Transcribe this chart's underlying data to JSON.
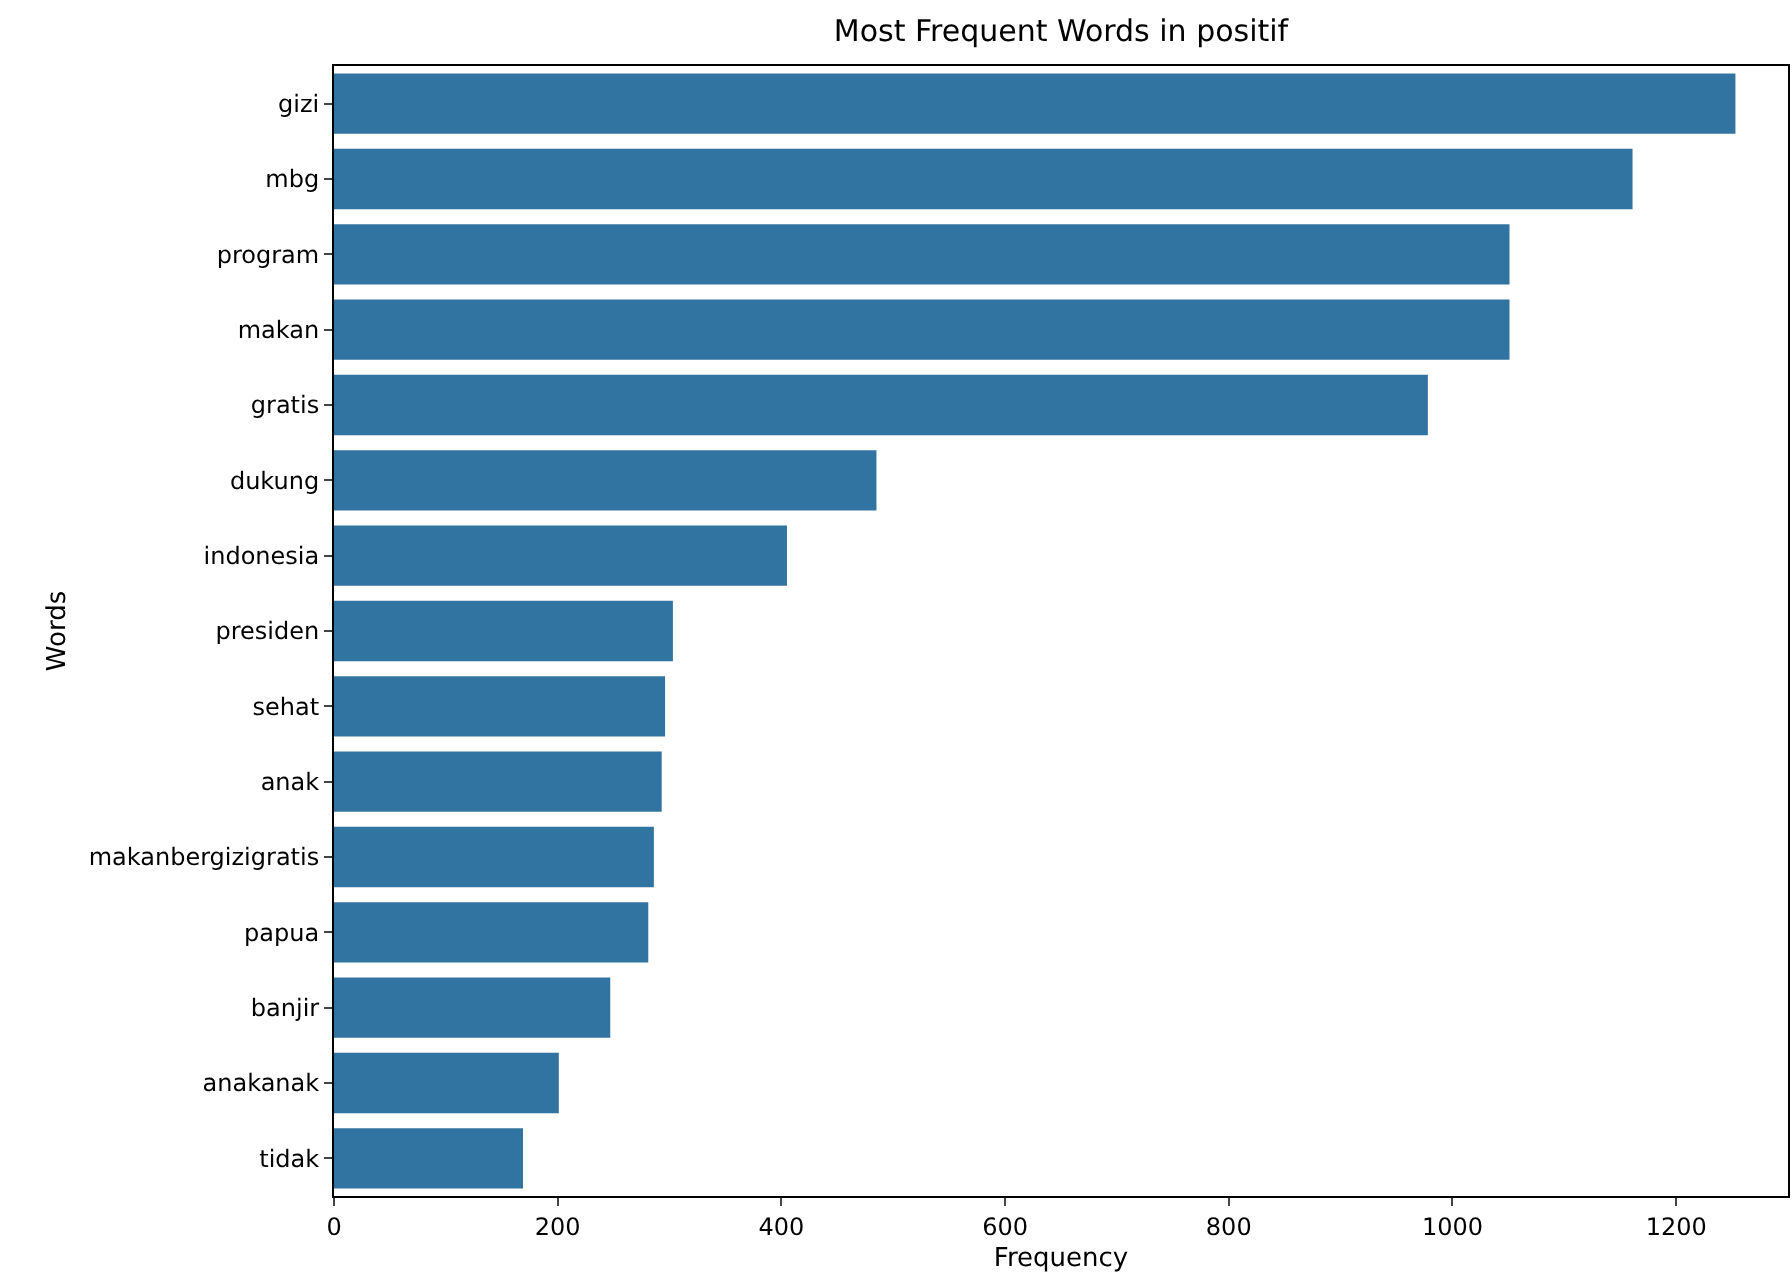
{
  "chart_data": {
    "type": "bar",
    "orientation": "horizontal",
    "title": "Most Frequent Words in positif",
    "xlabel": "Frequency",
    "ylabel": "Words",
    "categories": [
      "gizi",
      "mbg",
      "program",
      "makan",
      "gratis",
      "dukung",
      "indonesia",
      "presiden",
      "sehat",
      "anak",
      "makanbergizigratis",
      "papua",
      "banjir",
      "anakanak",
      "tidak"
    ],
    "values": [
      1253,
      1161,
      1051,
      1051,
      978,
      485,
      405,
      303,
      296,
      293,
      286,
      281,
      247,
      201,
      169
    ],
    "color": "#3274a1",
    "xlim": [
      0,
      1300
    ],
    "xticks": [
      0,
      200,
      400,
      600,
      800,
      1000,
      1200
    ],
    "legend": false
  }
}
